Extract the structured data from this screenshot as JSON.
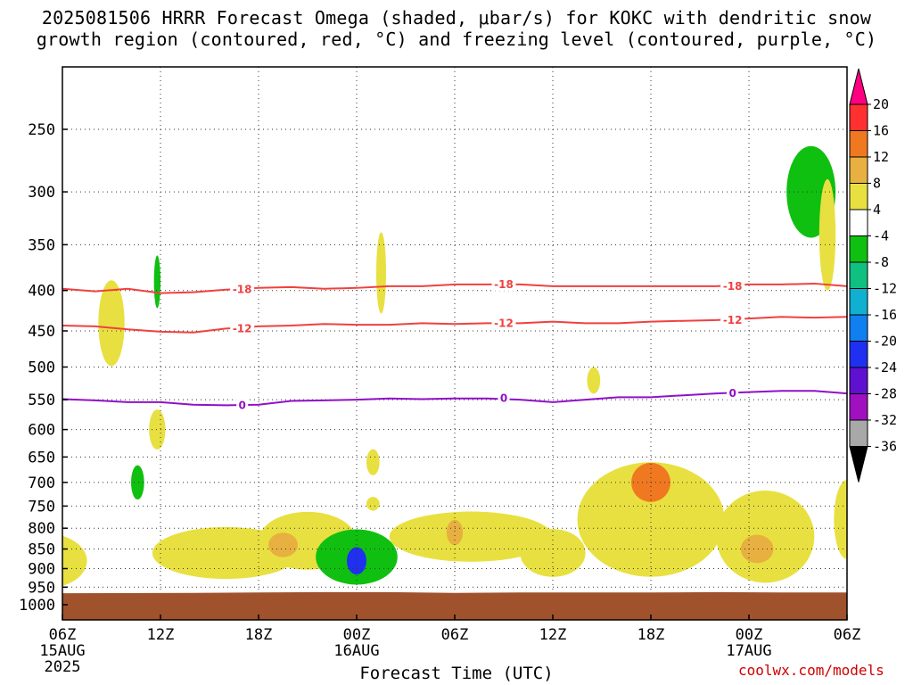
{
  "title_line1": "2025081506 HRRR Forecast Omega (shaded, μbar/s) for KOKC with dendritic snow",
  "title_line2": "growth region (contoured, red, °C) and freezing level (contoured, purple, °C)",
  "xlabel": "Forecast Time (UTC)",
  "credit": "coolwx.com/models",
  "chart_data": {
    "type": "heatmap",
    "y_axis": {
      "label": "",
      "scale": "pressure (inverted)",
      "ticks": [
        250,
        300,
        350,
        400,
        450,
        500,
        550,
        600,
        650,
        700,
        750,
        800,
        850,
        900,
        950,
        1000
      ]
    },
    "x_axis": {
      "ticks": [
        {
          "hour": 0,
          "label": "06Z",
          "sub1": "15AUG",
          "sub2": "2025"
        },
        {
          "hour": 6,
          "label": "12Z",
          "sub1": "",
          "sub2": ""
        },
        {
          "hour": 12,
          "label": "18Z",
          "sub1": "",
          "sub2": ""
        },
        {
          "hour": 18,
          "label": "00Z",
          "sub1": "16AUG",
          "sub2": ""
        },
        {
          "hour": 24,
          "label": "06Z",
          "sub1": "",
          "sub2": ""
        },
        {
          "hour": 30,
          "label": "12Z",
          "sub1": "",
          "sub2": ""
        },
        {
          "hour": 36,
          "label": "18Z",
          "sub1": "",
          "sub2": ""
        },
        {
          "hour": 42,
          "label": "00Z",
          "sub1": "17AUG",
          "sub2": ""
        },
        {
          "hour": 48,
          "label": "06Z",
          "sub1": "",
          "sub2": ""
        }
      ]
    },
    "grid": true,
    "colorbar": {
      "labels": [
        20,
        16,
        12,
        8,
        4,
        -4,
        -8,
        -12,
        -16,
        -20,
        -24,
        -28,
        -32,
        -36
      ],
      "colors": [
        "#ff0080",
        "#ff3030",
        "#f07820",
        "#e8b040",
        "#e8e040",
        "#ffffff",
        "#10c010",
        "#10c080",
        "#10b0d0",
        "#1080f0",
        "#2030f0",
        "#6010d0",
        "#a010c0",
        "#a8a8a8",
        "#000000"
      ]
    },
    "contours": [
      {
        "name": "-18",
        "color": "#f04040",
        "points": [
          [
            0,
            398
          ],
          [
            2,
            401
          ],
          [
            4,
            398
          ],
          [
            6,
            403
          ],
          [
            8,
            402
          ],
          [
            10,
            399
          ],
          [
            12,
            397
          ],
          [
            14,
            396
          ],
          [
            16,
            398
          ],
          [
            18,
            397
          ],
          [
            20,
            395
          ],
          [
            22,
            395
          ],
          [
            24,
            393
          ],
          [
            26,
            393
          ],
          [
            28,
            393
          ],
          [
            30,
            395
          ],
          [
            32,
            395
          ],
          [
            34,
            395
          ],
          [
            36,
            395
          ],
          [
            38,
            395
          ],
          [
            40,
            395
          ],
          [
            42,
            393
          ],
          [
            44,
            393
          ],
          [
            46,
            392
          ],
          [
            48,
            395
          ]
        ]
      },
      {
        "name": "-12",
        "color": "#f04040",
        "points": [
          [
            0,
            443
          ],
          [
            2,
            444
          ],
          [
            4,
            448
          ],
          [
            6,
            451
          ],
          [
            8,
            452
          ],
          [
            10,
            447
          ],
          [
            12,
            444
          ],
          [
            14,
            443
          ],
          [
            16,
            441
          ],
          [
            18,
            442
          ],
          [
            20,
            442
          ],
          [
            22,
            440
          ],
          [
            24,
            441
          ],
          [
            26,
            440
          ],
          [
            28,
            440
          ],
          [
            30,
            438
          ],
          [
            32,
            440
          ],
          [
            34,
            440
          ],
          [
            36,
            438
          ],
          [
            38,
            437
          ],
          [
            40,
            436
          ],
          [
            42,
            434
          ],
          [
            44,
            432
          ],
          [
            46,
            433
          ],
          [
            48,
            432
          ]
        ]
      },
      {
        "name": "0",
        "color": "#9010c8",
        "points": [
          [
            0,
            549
          ],
          [
            2,
            551
          ],
          [
            4,
            554
          ],
          [
            6,
            554
          ],
          [
            8,
            558
          ],
          [
            10,
            559
          ],
          [
            12,
            558
          ],
          [
            14,
            552
          ],
          [
            16,
            551
          ],
          [
            18,
            550
          ],
          [
            20,
            548
          ],
          [
            22,
            549
          ],
          [
            24,
            548
          ],
          [
            26,
            548
          ],
          [
            28,
            550
          ],
          [
            30,
            554
          ],
          [
            32,
            550
          ],
          [
            34,
            546
          ],
          [
            36,
            546
          ],
          [
            38,
            543
          ],
          [
            40,
            540
          ],
          [
            42,
            538
          ],
          [
            44,
            536
          ],
          [
            46,
            536
          ],
          [
            48,
            540
          ]
        ]
      }
    ],
    "omega_regions": [
      {
        "kind": "yellow",
        "hour": -1,
        "p": 880,
        "dh": 2.5,
        "dp": 70,
        "v": 5
      },
      {
        "kind": "yellow",
        "hour": 3.0,
        "p": 440,
        "dh": 0.8,
        "dp": 55,
        "v": 5
      },
      {
        "kind": "yellow",
        "hour": 5.8,
        "p": 600,
        "dh": 0.5,
        "dp": 35,
        "v": 5
      },
      {
        "kind": "green",
        "hour": 4.6,
        "p": 700,
        "dh": 0.4,
        "dp": 35,
        "v": -6
      },
      {
        "kind": "green",
        "hour": 5.8,
        "p": 390,
        "dh": 0.2,
        "dp": 30,
        "v": -6
      },
      {
        "kind": "yellow",
        "hour": 10,
        "p": 860,
        "dh": 4.5,
        "dp": 65,
        "v": 5
      },
      {
        "kind": "yellow",
        "hour": 15,
        "p": 830,
        "dh": 3.0,
        "dp": 70,
        "v": 5
      },
      {
        "kind": "orange",
        "hour": 13.5,
        "p": 840,
        "dh": 0.9,
        "dp": 30,
        "v": 9
      },
      {
        "kind": "yellow",
        "hour": 19,
        "p": 660,
        "dh": 0.4,
        "dp": 25,
        "v": 5
      },
      {
        "kind": "yellow",
        "hour": 19,
        "p": 745,
        "dh": 0.4,
        "dp": 15,
        "v": 5
      },
      {
        "kind": "green",
        "hour": 18,
        "p": 870,
        "dh": 2.5,
        "dp": 70,
        "v": -8
      },
      {
        "kind": "blue",
        "hour": 18,
        "p": 880,
        "dh": 0.6,
        "dp": 35,
        "v": -22
      },
      {
        "kind": "yellow",
        "hour": 25,
        "p": 820,
        "dh": 5,
        "dp": 60,
        "v": 5
      },
      {
        "kind": "orange",
        "hour": 24,
        "p": 810,
        "dh": 0.5,
        "dp": 30,
        "v": 9
      },
      {
        "kind": "yellow",
        "hour": 30,
        "p": 860,
        "dh": 2,
        "dp": 60,
        "v": 5
      },
      {
        "kind": "yellow",
        "hour": 36,
        "p": 780,
        "dh": 4.5,
        "dp": 130,
        "v": 5
      },
      {
        "kind": "orange",
        "hour": 36,
        "p": 700,
        "dh": 1.2,
        "dp": 40,
        "v": 12
      },
      {
        "kind": "yellow",
        "hour": 43,
        "p": 820,
        "dh": 3,
        "dp": 110,
        "v": 5
      },
      {
        "kind": "orange",
        "hour": 42.5,
        "p": 850,
        "dh": 1,
        "dp": 35,
        "v": 10
      },
      {
        "kind": "green",
        "hour": 45.8,
        "p": 300,
        "dh": 1.5,
        "dp": 40,
        "v": -6
      },
      {
        "kind": "yellow",
        "hour": 46.8,
        "p": 340,
        "dh": 0.5,
        "dp": 55,
        "v": 5
      },
      {
        "kind": "yellow",
        "hour": 48,
        "p": 780,
        "dh": 0.8,
        "dp": 90,
        "v": 5
      },
      {
        "kind": "yellow",
        "hour": 32.5,
        "p": 520,
        "dh": 0.4,
        "dp": 20,
        "v": 5
      },
      {
        "kind": "yellow",
        "hour": 19.5,
        "p": 380,
        "dh": 0.3,
        "dp": 45,
        "v": 5
      }
    ]
  }
}
